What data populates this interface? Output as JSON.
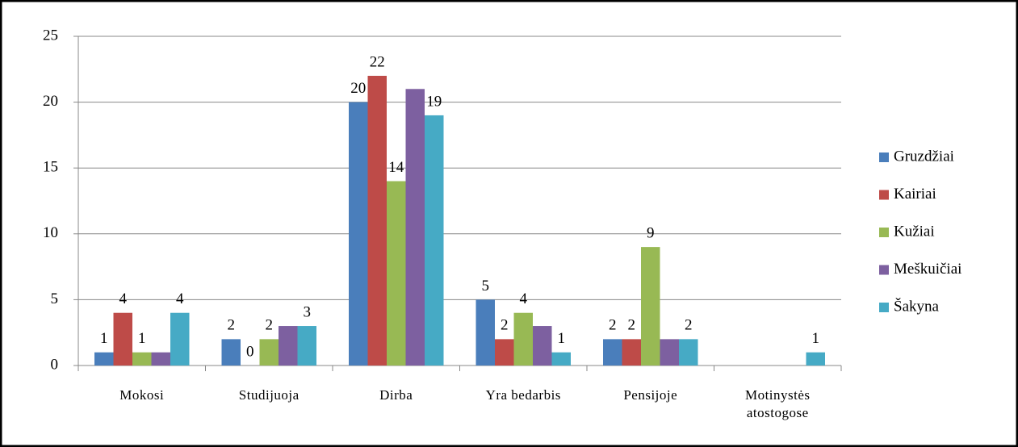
{
  "chart_data": {
    "type": "bar",
    "categories": [
      "Mokosi",
      "Studijuoja",
      "Dirba",
      "Yra bedarbis",
      "Pensijoje",
      "Motinystės atostogose"
    ],
    "series": [
      {
        "name": "Gruzdžiai",
        "color": "#4a7ebb",
        "values": [
          1,
          2,
          20,
          5,
          2,
          null
        ],
        "value_labels": [
          "1",
          "2",
          "20",
          "5",
          "2",
          null
        ]
      },
      {
        "name": "Kairiai",
        "color": "#be4b48",
        "values": [
          4,
          0,
          22,
          2,
          2,
          null
        ],
        "value_labels": [
          "4",
          "0",
          "22",
          "2",
          "2",
          null
        ]
      },
      {
        "name": "Kužiai",
        "color": "#98b954",
        "values": [
          1,
          2,
          14,
          4,
          9,
          null
        ],
        "value_labels": [
          "1",
          "2",
          "14",
          "4",
          "9",
          null
        ]
      },
      {
        "name": "Meškuičiai",
        "color": "#7d60a0",
        "values": [
          1,
          3,
          21,
          3,
          2,
          null
        ]
      },
      {
        "name": "Šakyna",
        "color": "#46aac5",
        "values": [
          4,
          3,
          19,
          1,
          2,
          1
        ],
        "value_labels": [
          "4",
          "3",
          "19",
          "1",
          "2",
          "1"
        ]
      }
    ],
    "ylim": [
      0,
      25
    ],
    "yticks": [
      0,
      5,
      10,
      15,
      20,
      25
    ],
    "grid": true,
    "legend": "right"
  }
}
